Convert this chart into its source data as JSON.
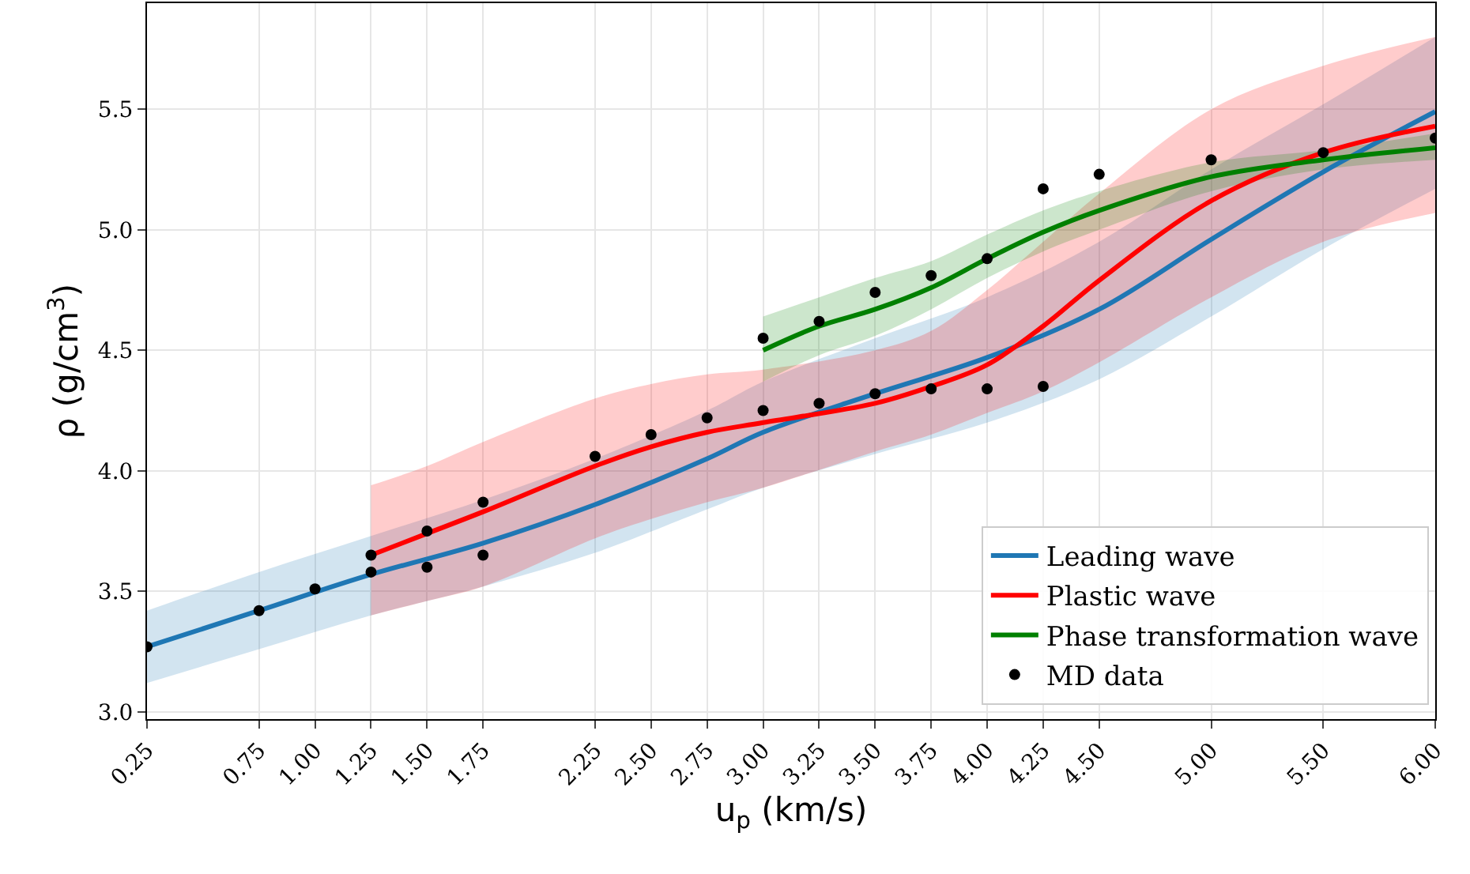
{
  "chart_data": {
    "type": "line",
    "xlabel": "u$_{p}$ (km/s)",
    "ylabel": "ρ (g/cm$^{3}$)",
    "xlim": [
      0.25,
      6.0
    ],
    "ylim": [
      2.97,
      5.94
    ],
    "xticks": [
      {
        "value": 0.25,
        "label": "0.25"
      },
      {
        "value": 0.75,
        "label": "0.75"
      },
      {
        "value": 1.0,
        "label": "1.00"
      },
      {
        "value": 1.25,
        "label": "1.25"
      },
      {
        "value": 1.5,
        "label": "1.50"
      },
      {
        "value": 1.75,
        "label": "1.75"
      },
      {
        "value": 2.25,
        "label": "2.25"
      },
      {
        "value": 2.5,
        "label": "2.50"
      },
      {
        "value": 2.75,
        "label": "2.75"
      },
      {
        "value": 3.0,
        "label": "3.00"
      },
      {
        "value": 3.25,
        "label": "3.25"
      },
      {
        "value": 3.5,
        "label": "3.50"
      },
      {
        "value": 3.75,
        "label": "3.75"
      },
      {
        "value": 4.0,
        "label": "4.00"
      },
      {
        "value": 4.25,
        "label": "4.25"
      },
      {
        "value": 4.5,
        "label": "4.50"
      },
      {
        "value": 5.0,
        "label": "5.00"
      },
      {
        "value": 5.5,
        "label": "5.50"
      },
      {
        "value": 6.0,
        "label": "6.00"
      }
    ],
    "yticks": [
      {
        "value": 3.0,
        "label": "3.0"
      },
      {
        "value": 3.5,
        "label": "3.5"
      },
      {
        "value": 4.0,
        "label": "4.0"
      },
      {
        "value": 4.5,
        "label": "4.5"
      },
      {
        "value": 5.0,
        "label": "5.0"
      },
      {
        "value": 5.5,
        "label": "5.5"
      }
    ],
    "grid": true,
    "legend": "bottom right",
    "series": [
      {
        "name": "Leading wave",
        "color": "#1f77b4",
        "x": [
          0.25,
          0.75,
          1.25,
          1.75,
          2.25,
          2.75,
          3.0,
          3.5,
          4.0,
          4.5,
          5.0,
          5.5,
          6.0
        ],
        "values": [
          3.27,
          3.42,
          3.57,
          3.7,
          3.86,
          4.05,
          4.16,
          4.32,
          4.47,
          4.67,
          4.96,
          5.24,
          5.49
        ],
        "lower": [
          3.12,
          3.26,
          3.4,
          3.52,
          3.66,
          3.84,
          3.93,
          4.07,
          4.2,
          4.38,
          4.64,
          4.92,
          5.17
        ],
        "upper": [
          3.42,
          3.58,
          3.73,
          3.88,
          4.05,
          4.25,
          4.37,
          4.55,
          4.72,
          4.95,
          5.25,
          5.52,
          5.8
        ]
      },
      {
        "name": "Plastic wave",
        "color": "#ff0000",
        "x": [
          1.25,
          1.5,
          1.75,
          2.25,
          2.5,
          2.75,
          3.0,
          3.5,
          3.75,
          4.0,
          4.25,
          4.5,
          5.0,
          5.5,
          6.0
        ],
        "values": [
          3.65,
          3.74,
          3.83,
          4.02,
          4.1,
          4.16,
          4.2,
          4.28,
          4.35,
          4.44,
          4.6,
          4.79,
          5.12,
          5.32,
          5.43
        ],
        "lower": [
          3.4,
          3.46,
          3.52,
          3.72,
          3.8,
          3.87,
          3.93,
          4.08,
          4.15,
          4.24,
          4.33,
          4.45,
          4.72,
          4.95,
          5.07
        ],
        "upper": [
          3.94,
          4.02,
          4.12,
          4.3,
          4.36,
          4.4,
          4.42,
          4.5,
          4.58,
          4.75,
          4.95,
          5.15,
          5.5,
          5.68,
          5.8
        ]
      },
      {
        "name": "Phase transformation wave",
        "color": "#008000",
        "x": [
          3.0,
          3.25,
          3.5,
          3.75,
          4.0,
          4.25,
          4.5,
          5.0,
          5.5,
          6.0
        ],
        "values": [
          4.5,
          4.6,
          4.67,
          4.76,
          4.88,
          4.99,
          5.08,
          5.22,
          5.29,
          5.34
        ],
        "lower": [
          4.37,
          4.48,
          4.56,
          4.67,
          4.8,
          4.91,
          5.0,
          5.16,
          5.25,
          5.29
        ],
        "upper": [
          4.64,
          4.72,
          4.8,
          4.87,
          4.98,
          5.08,
          5.16,
          5.28,
          5.33,
          5.4
        ]
      },
      {
        "name": "MD data",
        "type": "scatter",
        "color": "#000000",
        "marker": "circle",
        "x": [
          0.25,
          0.75,
          1.0,
          1.25,
          1.25,
          1.5,
          1.5,
          1.75,
          1.75,
          2.25,
          2.5,
          2.75,
          3.0,
          3.0,
          3.25,
          3.25,
          3.5,
          3.5,
          3.75,
          3.75,
          4.0,
          4.0,
          4.25,
          4.25,
          4.5,
          5.0,
          5.5,
          6.0
        ],
        "values": [
          3.27,
          3.42,
          3.51,
          3.65,
          3.58,
          3.75,
          3.6,
          3.87,
          3.65,
          4.06,
          4.15,
          4.22,
          4.25,
          4.55,
          4.28,
          4.62,
          4.32,
          4.74,
          4.34,
          4.81,
          4.34,
          4.88,
          4.35,
          5.17,
          5.23,
          5.29,
          5.32,
          5.38
        ]
      }
    ]
  }
}
